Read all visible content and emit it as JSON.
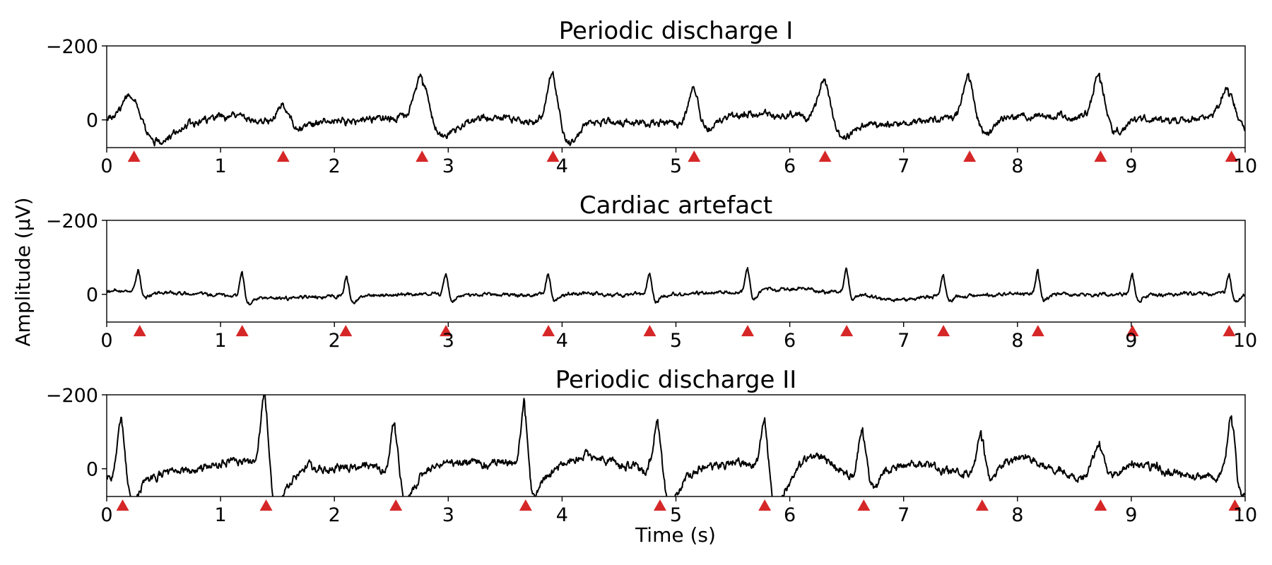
{
  "figure": {
    "ylabel": "Amplitude (µV)",
    "xlabel": "Time (s)"
  },
  "style": {
    "trace_color": "#000000",
    "marker_color": "#d62728"
  },
  "chart_data": [
    {
      "type": "line",
      "title": "Periodic discharge I",
      "xlim": [
        0,
        10
      ],
      "ylim": [
        75,
        -200
      ],
      "y_axis_inverted": true,
      "xticks": [
        0,
        1,
        2,
        3,
        4,
        5,
        6,
        7,
        8,
        9,
        10
      ],
      "yticks": [
        -200,
        0
      ],
      "ytick_labels": [
        "−200",
        "0"
      ],
      "baseline_keypoints": [
        [
          0,
          0
        ],
        [
          0.5,
          30
        ],
        [
          0.8,
          10
        ],
        [
          1.0,
          -15
        ],
        [
          1.5,
          5
        ],
        [
          2.0,
          5
        ],
        [
          2.7,
          -5
        ],
        [
          3.0,
          10
        ],
        [
          3.5,
          -5
        ],
        [
          4.0,
          15
        ],
        [
          4.4,
          5
        ],
        [
          5.0,
          10
        ],
        [
          5.6,
          -15
        ],
        [
          6.0,
          -10
        ],
        [
          6.4,
          10
        ],
        [
          7.0,
          10
        ],
        [
          7.5,
          -5
        ],
        [
          8.0,
          -10
        ],
        [
          8.5,
          -10
        ],
        [
          9.0,
          -5
        ],
        [
          9.5,
          0
        ],
        [
          10.0,
          0
        ]
      ],
      "spikes": [
        {
          "t": 0.22,
          "amp": -80,
          "width": 0.08
        },
        {
          "t": 1.55,
          "amp": -45,
          "width": 0.05
        },
        {
          "t": 2.77,
          "amp": -115,
          "width": 0.06
        },
        {
          "t": 3.92,
          "amp": -140,
          "width": 0.05
        },
        {
          "t": 5.16,
          "amp": -90,
          "width": 0.045
        },
        {
          "t": 6.31,
          "amp": -115,
          "width": 0.055
        },
        {
          "t": 7.57,
          "amp": -115,
          "width": 0.05
        },
        {
          "t": 8.72,
          "amp": -120,
          "width": 0.05
        },
        {
          "t": 9.85,
          "amp": -85,
          "width": 0.07
        }
      ],
      "noise": 6,
      "markers": {
        "y": 100,
        "x": [
          0.24,
          1.55,
          2.77,
          3.92,
          5.16,
          6.31,
          7.58,
          8.73,
          9.88
        ]
      }
    },
    {
      "type": "line",
      "title": "Cardiac artefact",
      "xlim": [
        0,
        10
      ],
      "ylim": [
        75,
        -200
      ],
      "y_axis_inverted": true,
      "xticks": [
        0,
        1,
        2,
        3,
        4,
        5,
        6,
        7,
        8,
        9,
        10
      ],
      "yticks": [
        -200,
        0
      ],
      "ytick_labels": [
        "−200",
        "0"
      ],
      "baseline_keypoints": [
        [
          0,
          -10
        ],
        [
          0.5,
          -5
        ],
        [
          1.0,
          0
        ],
        [
          1.5,
          10
        ],
        [
          2.0,
          5
        ],
        [
          3.0,
          0
        ],
        [
          4.0,
          0
        ],
        [
          5.0,
          0
        ],
        [
          5.5,
          -5
        ],
        [
          6.0,
          -15
        ],
        [
          6.5,
          -5
        ],
        [
          7.0,
          15
        ],
        [
          7.3,
          5
        ],
        [
          8.0,
          0
        ],
        [
          9.0,
          0
        ],
        [
          10.0,
          0
        ]
      ],
      "spikes": [
        {
          "t": 0.28,
          "amp": -60,
          "width": 0.02
        },
        {
          "t": 1.19,
          "amp": -60,
          "width": 0.02
        },
        {
          "t": 2.11,
          "amp": -58,
          "width": 0.02
        },
        {
          "t": 2.98,
          "amp": -58,
          "width": 0.02
        },
        {
          "t": 3.88,
          "amp": -58,
          "width": 0.02
        },
        {
          "t": 4.77,
          "amp": -58,
          "width": 0.02
        },
        {
          "t": 5.63,
          "amp": -62,
          "width": 0.02
        },
        {
          "t": 6.5,
          "amp": -62,
          "width": 0.02
        },
        {
          "t": 7.35,
          "amp": -55,
          "width": 0.02
        },
        {
          "t": 8.18,
          "amp": -62,
          "width": 0.02
        },
        {
          "t": 9.01,
          "amp": -55,
          "width": 0.02
        },
        {
          "t": 9.86,
          "amp": -55,
          "width": 0.02
        }
      ],
      "noise": 3,
      "markers": {
        "y": 100,
        "x": [
          0.29,
          1.19,
          2.1,
          2.98,
          3.88,
          4.77,
          5.63,
          6.5,
          7.35,
          8.18,
          9.01,
          9.86
        ]
      }
    },
    {
      "type": "line",
      "title": "Periodic discharge II",
      "xlim": [
        0,
        10
      ],
      "ylim": [
        75,
        -200
      ],
      "y_axis_inverted": true,
      "xticks": [
        0,
        1,
        2,
        3,
        4,
        5,
        6,
        7,
        8,
        9,
        10
      ],
      "yticks": [
        -200,
        0
      ],
      "ytick_labels": [
        "−200",
        "0"
      ],
      "baseline_keypoints": [
        [
          0,
          25
        ],
        [
          0.3,
          30
        ],
        [
          0.7,
          0
        ],
        [
          1.0,
          -20
        ],
        [
          1.3,
          -20
        ],
        [
          1.5,
          40
        ],
        [
          1.8,
          0
        ],
        [
          2.3,
          -5
        ],
        [
          2.6,
          35
        ],
        [
          3.0,
          -15
        ],
        [
          3.5,
          -15
        ],
        [
          3.8,
          20
        ],
        [
          4.2,
          -30
        ],
        [
          4.6,
          -10
        ],
        [
          4.9,
          40
        ],
        [
          5.3,
          -10
        ],
        [
          5.6,
          -20
        ],
        [
          5.9,
          50
        ],
        [
          6.2,
          -30
        ],
        [
          6.6,
          20
        ],
        [
          7.0,
          -10
        ],
        [
          7.6,
          10
        ],
        [
          8.0,
          -30
        ],
        [
          8.6,
          20
        ],
        [
          9.0,
          -20
        ],
        [
          9.5,
          20
        ],
        [
          10.0,
          20
        ]
      ],
      "spikes": [
        {
          "t": 0.13,
          "amp": -165,
          "width": 0.035
        },
        {
          "t": 1.39,
          "amp": -205,
          "width": 0.035
        },
        {
          "t": 2.53,
          "amp": -155,
          "width": 0.035
        },
        {
          "t": 3.67,
          "amp": -185,
          "width": 0.03
        },
        {
          "t": 4.84,
          "amp": -160,
          "width": 0.04
        },
        {
          "t": 5.78,
          "amp": -150,
          "width": 0.035
        },
        {
          "t": 6.64,
          "amp": -120,
          "width": 0.035
        },
        {
          "t": 7.68,
          "amp": -100,
          "width": 0.035
        },
        {
          "t": 8.72,
          "amp": -80,
          "width": 0.05
        },
        {
          "t": 9.88,
          "amp": -170,
          "width": 0.035
        }
      ],
      "noise": 7,
      "markers": {
        "y": 100,
        "x": [
          0.14,
          1.4,
          2.54,
          3.68,
          4.86,
          5.78,
          6.65,
          7.69,
          8.73,
          9.91
        ]
      }
    }
  ]
}
